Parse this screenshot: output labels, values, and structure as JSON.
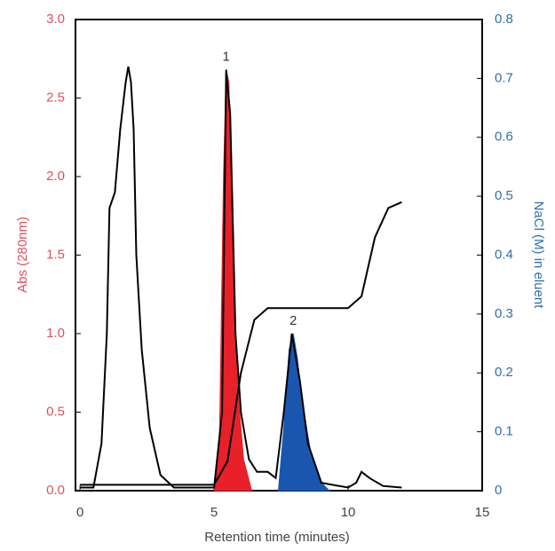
{
  "chart_data": {
    "type": "line",
    "xlabel": "Retention time (minutes)",
    "ylabel": "Abs (280nm)",
    "y2label": "NaCl (M) in eluent",
    "ylabel_color": "#e0505e",
    "y2label_color": "#2f6fb0",
    "xlim": [
      -0.17,
      15
    ],
    "ylim": [
      0,
      3.0
    ],
    "y2lim": [
      0,
      0.8
    ],
    "xticks": [
      0,
      5,
      10,
      15
    ],
    "yticks": [
      {
        "value": 0,
        "label": "0.0"
      },
      0.5,
      {
        "value": 1,
        "label": "1.0"
      },
      1.5,
      {
        "value": 2,
        "label": "2.0"
      },
      2.5,
      {
        "value": 3,
        "label": "3.0"
      }
    ],
    "y2ticks": [
      0,
      0.1,
      0.2,
      0.3,
      0.4,
      0.5,
      0.6,
      0.7,
      0.8
    ],
    "series": [
      {
        "color": "#e8202a",
        "fill": true,
        "x": [
          5.0,
          5.2,
          5.35,
          5.45,
          5.55,
          5.7,
          5.9,
          6.1,
          6.4
        ],
        "values": [
          0,
          0.3,
          2.0,
          2.68,
          2.6,
          1.4,
          0.6,
          0.2,
          0
        ]
      },
      {
        "color": "#1a56b0",
        "fill": true,
        "x": [
          7.4,
          7.6,
          7.8,
          7.95,
          8.1,
          8.3,
          8.6,
          9.0,
          9.3
        ],
        "values": [
          0,
          0.4,
          0.9,
          1.0,
          0.85,
          0.55,
          0.25,
          0.05,
          0
        ]
      },
      {
        "color": "#000000",
        "x": [
          0,
          0.5,
          0.8,
          1.0,
          1.1,
          1.3,
          1.5,
          1.7,
          1.8,
          1.9,
          2.0,
          2.1,
          2.3,
          2.6,
          3.0,
          3.5,
          5.0,
          5.3,
          5.45,
          5.6,
          5.8,
          6.0,
          6.3,
          6.6,
          7.0,
          7.3,
          7.6,
          7.9,
          8.2,
          8.5,
          9.0,
          10.0,
          10.3,
          10.5,
          10.8,
          11.3,
          12.0
        ],
        "values": [
          0.02,
          0.02,
          0.3,
          1.0,
          1.8,
          1.9,
          2.3,
          2.6,
          2.7,
          2.6,
          2.3,
          1.5,
          0.9,
          0.4,
          0.1,
          0.02,
          0.02,
          0.5,
          2.68,
          2.4,
          1.0,
          0.5,
          0.2,
          0.12,
          0.12,
          0.08,
          0.5,
          1.0,
          0.7,
          0.3,
          0.05,
          0.02,
          0.05,
          0.12,
          0.08,
          0.03,
          0.02
        ]
      },
      {
        "color": "#000000",
        "axis": "y2",
        "x": [
          0,
          1,
          5,
          5.5,
          6.0,
          6.5,
          7.0,
          10.0,
          10.5,
          11.0,
          11.5,
          12.0
        ],
        "values": [
          0.01,
          0.01,
          0.01,
          0.05,
          0.2,
          0.29,
          0.31,
          0.31,
          0.33,
          0.43,
          0.48,
          0.49
        ]
      }
    ],
    "annotations": [
      {
        "text": "1",
        "x": 5.45,
        "y": 2.68
      },
      {
        "text": "2",
        "x": 7.95,
        "y": 1.0
      }
    ]
  }
}
